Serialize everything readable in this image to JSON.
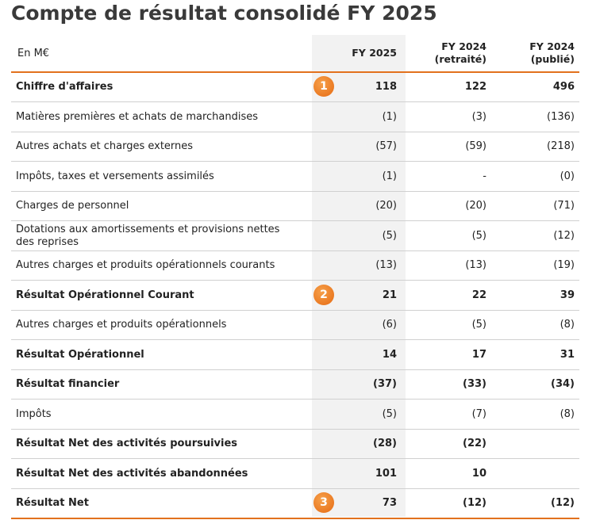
{
  "title": "Compte de résultat consolidé FY 2025",
  "table": {
    "header": {
      "label": "En M€",
      "columns": [
        [
          "FY 2025"
        ],
        [
          "FY 2024",
          "(retraité)"
        ],
        [
          "FY 2024",
          "(publié)"
        ]
      ]
    },
    "rows": [
      {
        "label": [
          "Chiffre d'affaires"
        ],
        "bold": true,
        "badge": "1",
        "values": [
          "118",
          "122",
          "496"
        ]
      },
      {
        "label": [
          "Matières premières et achats de marchandises"
        ],
        "bold": false,
        "values": [
          "(1)",
          "(3)",
          "(136)"
        ]
      },
      {
        "label": [
          "Autres achats et charges externes"
        ],
        "bold": false,
        "values": [
          "(57)",
          "(59)",
          "(218)"
        ]
      },
      {
        "label": [
          "Impôts, taxes et versements assimilés"
        ],
        "bold": false,
        "values": [
          "(1)",
          "-",
          "(0)"
        ]
      },
      {
        "label": [
          "Charges de personnel"
        ],
        "bold": false,
        "values": [
          "(20)",
          "(20)",
          "(71)"
        ]
      },
      {
        "label": [
          "Dotations aux amortissements et provisions nettes",
          "des reprises"
        ],
        "bold": false,
        "values": [
          "(5)",
          "(5)",
          "(12)"
        ]
      },
      {
        "label": [
          "Autres charges et produits opérationnels courants"
        ],
        "bold": false,
        "values": [
          "(13)",
          "(13)",
          "(19)"
        ]
      },
      {
        "label": [
          "Résultat Opérationnel Courant"
        ],
        "bold": true,
        "badge": "2",
        "values": [
          "21",
          "22",
          "39"
        ]
      },
      {
        "label": [
          "Autres charges et produits opérationnels"
        ],
        "bold": false,
        "values": [
          "(6)",
          "(5)",
          "(8)"
        ]
      },
      {
        "label": [
          "Résultat Opérationnel"
        ],
        "bold": true,
        "values": [
          "14",
          "17",
          "31"
        ]
      },
      {
        "label": [
          "Résultat financier"
        ],
        "bold": true,
        "values": [
          "(37)",
          "(33)",
          "(34)"
        ]
      },
      {
        "label": [
          "Impôts"
        ],
        "bold": false,
        "values": [
          "(5)",
          "(7)",
          "(8)"
        ]
      },
      {
        "label": [
          "Résultat Net des activités poursuivies"
        ],
        "bold": true,
        "values": [
          "(28)",
          "(22)",
          null
        ]
      },
      {
        "label": [
          "Résultat Net des activités abandonnées"
        ],
        "bold": true,
        "values": [
          "101",
          "10",
          null
        ]
      },
      {
        "label": [
          "Résultat Net"
        ],
        "bold": true,
        "badge": "3",
        "values": [
          "73",
          "(12)",
          "(12)"
        ]
      }
    ]
  }
}
